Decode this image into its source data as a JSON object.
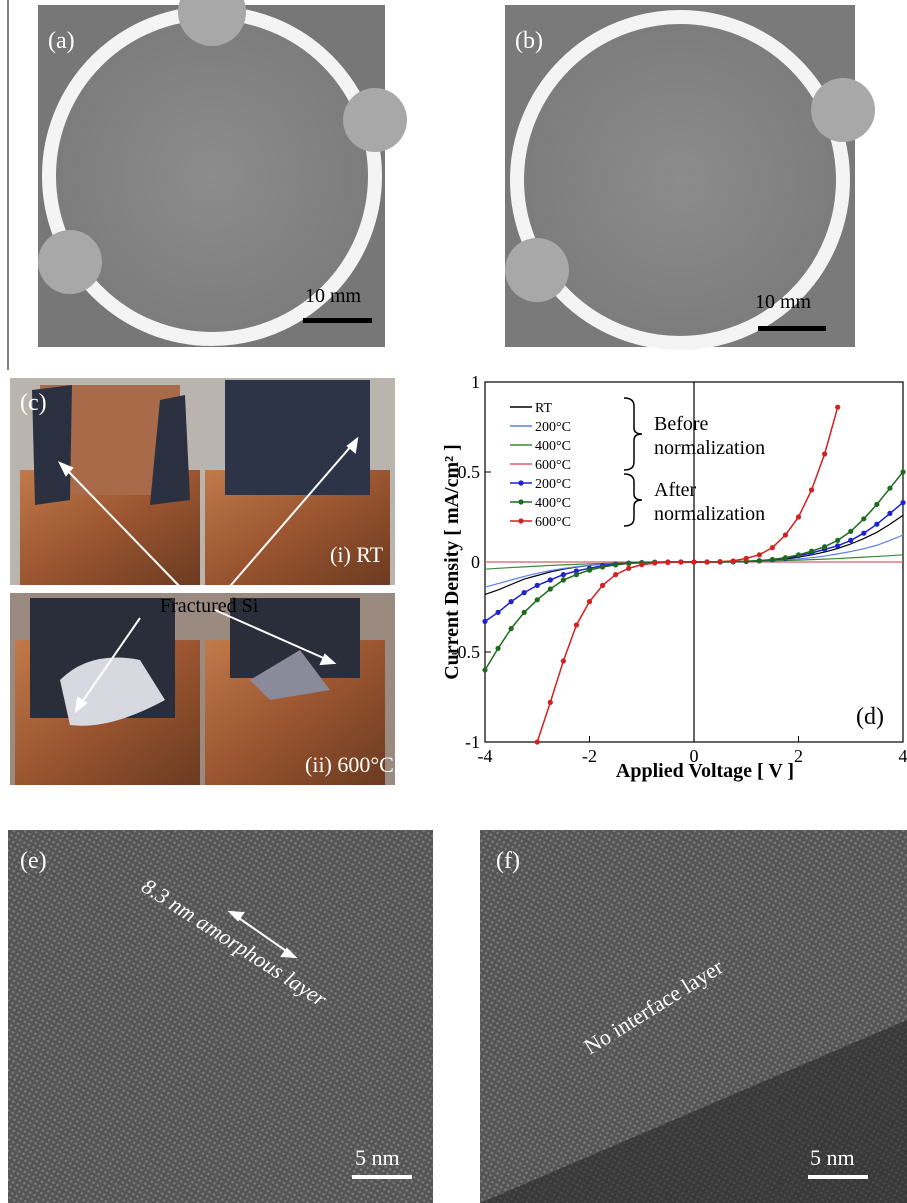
{
  "panels": {
    "a": {
      "label": "(a)",
      "scale": "10 mm"
    },
    "b": {
      "label": "(b)",
      "scale": "10 mm"
    },
    "c": {
      "label": "(c)",
      "top_caption": "(i) RT",
      "bottom_caption": "(ii) 600°C",
      "annotation": "Fractured Si"
    },
    "e": {
      "label": "(e)",
      "annotation": "8.3 nm amorphous layer",
      "scale": "5 nm"
    },
    "f": {
      "label": "(f)",
      "annotation": "No interface layer",
      "scale": "5 nm"
    }
  },
  "chart_data": {
    "type": "line",
    "label": "(d)",
    "x_label": "Applied Voltage [ V ]",
    "y_label": "Current Density [ mA/cm² ]",
    "x": [
      -4,
      -3.75,
      -3.5,
      -3.25,
      -3,
      -2.75,
      -2.5,
      -2.25,
      -2,
      -1.75,
      -1.5,
      -1.25,
      -1,
      -0.75,
      -0.5,
      -0.25,
      0,
      0.25,
      0.5,
      0.75,
      1,
      1.25,
      1.5,
      1.75,
      2,
      2.25,
      2.5,
      2.75,
      3,
      3.25,
      3.5,
      3.75,
      4
    ],
    "series": [
      {
        "name": "RT",
        "color": "#000000",
        "markers": false,
        "values": [
          -0.18,
          -0.155,
          -0.125,
          -0.095,
          -0.075,
          -0.055,
          -0.04,
          -0.028,
          -0.019,
          -0.011,
          -0.007,
          -0.003,
          -0.002,
          -0.001,
          0,
          0,
          0,
          0,
          0,
          0.001,
          0.002,
          0.005,
          0.009,
          0.016,
          0.027,
          0.04,
          0.055,
          0.075,
          0.1,
          0.13,
          0.165,
          0.21,
          0.26
        ]
      },
      {
        "name": "200°C",
        "color": "#5b7fe6",
        "markers": false,
        "values": [
          -0.14,
          -0.12,
          -0.1,
          -0.08,
          -0.063,
          -0.048,
          -0.036,
          -0.026,
          -0.018,
          -0.012,
          -0.007,
          -0.004,
          -0.002,
          -0.001,
          0,
          0,
          0,
          0,
          0,
          0.001,
          0.002,
          0.004,
          0.007,
          0.011,
          0.017,
          0.024,
          0.033,
          0.045,
          0.058,
          0.074,
          0.093,
          0.12,
          0.15
        ]
      },
      {
        "name": "400°C",
        "color": "#3a8a3a",
        "markers": false,
        "values": [
          -0.04,
          -0.035,
          -0.031,
          -0.027,
          -0.023,
          -0.019,
          -0.016,
          -0.013,
          -0.01,
          -0.008,
          -0.006,
          -0.004,
          -0.003,
          -0.002,
          -0.001,
          0,
          0,
          0,
          0.001,
          0.002,
          0.003,
          0.004,
          0.006,
          0.008,
          0.01,
          0.013,
          0.016,
          0.019,
          0.023,
          0.027,
          0.031,
          0.035,
          0.04
        ]
      },
      {
        "name": "600°C",
        "color": "#e05a6a",
        "markers": false,
        "values": [
          0,
          0,
          0,
          0,
          0,
          0,
          0,
          0,
          0,
          0,
          0,
          0,
          0,
          0,
          0,
          0,
          0,
          0,
          0,
          0,
          0,
          0,
          0,
          0,
          0,
          0,
          0,
          0,
          0,
          0,
          0,
          0,
          0
        ]
      },
      {
        "name": "200°C",
        "color": "#1c22d0",
        "markers": true,
        "values": [
          -0.33,
          -0.28,
          -0.22,
          -0.17,
          -0.13,
          -0.1,
          -0.07,
          -0.05,
          -0.035,
          -0.02,
          -0.012,
          -0.006,
          -0.003,
          -0.001,
          0,
          0,
          0,
          0,
          0,
          0.001,
          0.003,
          0.006,
          0.012,
          0.02,
          0.035,
          0.05,
          0.07,
          0.09,
          0.12,
          0.16,
          0.21,
          0.27,
          0.33
        ]
      },
      {
        "name": "400°C",
        "color": "#1e6b1e",
        "markers": true,
        "values": [
          -0.6,
          -0.48,
          -0.37,
          -0.28,
          -0.21,
          -0.15,
          -0.1,
          -0.07,
          -0.045,
          -0.028,
          -0.016,
          -0.008,
          -0.004,
          -0.002,
          -0.001,
          0,
          0,
          0,
          0.001,
          0.002,
          0.004,
          0.008,
          0.014,
          0.024,
          0.04,
          0.06,
          0.085,
          0.12,
          0.17,
          0.24,
          0.32,
          0.41,
          0.5
        ]
      },
      {
        "name": "600°C",
        "color": "#d42020",
        "markers": true,
        "values": [
          null,
          null,
          null,
          null,
          -1,
          -0.78,
          -0.55,
          -0.35,
          -0.22,
          -0.13,
          -0.07,
          -0.035,
          -0.015,
          -0.006,
          -0.002,
          0,
          0,
          0,
          0.002,
          0.006,
          0.02,
          0.04,
          0.08,
          0.15,
          0.25,
          0.4,
          0.6,
          0.86,
          null,
          null,
          null,
          null,
          null
        ]
      }
    ],
    "legend_groups": [
      [
        "Before",
        "normalization"
      ],
      [
        "After",
        "normalization"
      ]
    ],
    "xlim": [
      -4,
      4
    ],
    "ylim": [
      -1,
      1
    ],
    "xticks": [
      -4,
      -2,
      0,
      2,
      4
    ],
    "yticks": [
      -1,
      -0.5,
      0,
      0.5,
      1
    ],
    "grid": false
  }
}
